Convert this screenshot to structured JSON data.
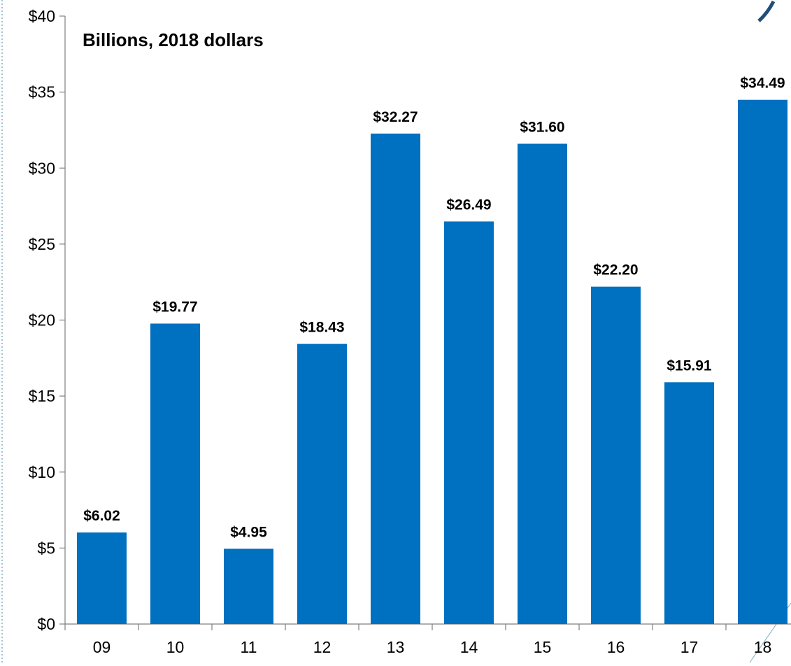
{
  "chart_data": {
    "type": "bar",
    "title": "",
    "subtitle": "Billions, 2018 dollars",
    "xlabel": "",
    "ylabel": "",
    "categories": [
      "09",
      "10",
      "11",
      "12",
      "13",
      "14",
      "15",
      "16",
      "17",
      "18"
    ],
    "values": [
      6.02,
      19.77,
      4.95,
      18.43,
      32.27,
      26.49,
      31.6,
      22.2,
      15.91,
      34.49
    ],
    "data_labels": [
      "$6.02",
      "$19.77",
      "$4.95",
      "$18.43",
      "$32.27",
      "$26.49",
      "$31.60",
      "$22.20",
      "$15.91",
      "$34.49"
    ],
    "ylim": [
      0,
      40
    ],
    "yticks": [
      0,
      5,
      10,
      15,
      20,
      25,
      30,
      35,
      40
    ],
    "ytick_labels": [
      "$0",
      "$5",
      "$10",
      "$15",
      "$20",
      "$25",
      "$30",
      "$35",
      "$40"
    ],
    "grid": false,
    "legend": "none",
    "bar_color": "#0070C0",
    "axis_color": "#808080"
  }
}
